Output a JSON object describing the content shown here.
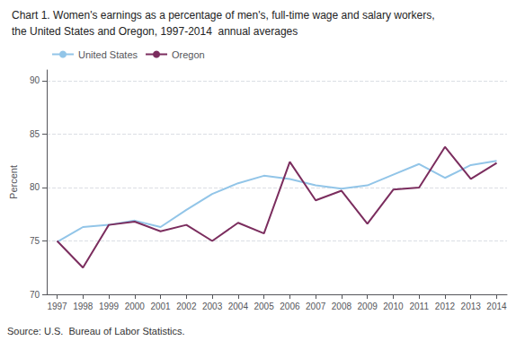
{
  "chart_data": {
    "type": "line",
    "title": "Chart 1. Women's earnings as a percentage of men's, full-time wage and salary workers,",
    "subtitle": "the United States and Oregon, 1997-2014  annual averages",
    "y_label": "Percent",
    "annotations": [
      "Source: U.S.  Bureau of Labor Statistics."
    ],
    "x": [
      1997,
      1998,
      1999,
      2000,
      2001,
      2002,
      2003,
      2004,
      2005,
      2006,
      2007,
      2008,
      2009,
      2010,
      2011,
      2012,
      2013,
      2014
    ],
    "series": [
      {
        "name": "United States",
        "color": "#92C5E8",
        "values": [
          74.9,
          76.3,
          76.5,
          76.9,
          76.3,
          77.9,
          79.4,
          80.4,
          81.1,
          80.8,
          80.2,
          79.9,
          80.2,
          81.2,
          82.2,
          80.9,
          82.1,
          82.5
        ]
      },
      {
        "name": "Oregon",
        "color": "#7B2D5E",
        "values": [
          75.0,
          72.5,
          76.5,
          76.8,
          75.9,
          76.5,
          75.0,
          76.7,
          75.7,
          82.4,
          78.8,
          79.7,
          76.6,
          79.8,
          80.0,
          83.8,
          80.8,
          82.3
        ]
      }
    ],
    "xlim": [
      1996.6,
      2014.4
    ],
    "xticks": [
      1997,
      1998,
      1999,
      2000,
      2001,
      2002,
      2003,
      2004,
      2005,
      2006,
      2007,
      2008,
      2009,
      2010,
      2011,
      2012,
      2013,
      2014
    ],
    "ylim": [
      70,
      91
    ],
    "yticks": [
      70,
      75,
      80,
      85,
      90
    ],
    "grid": true,
    "legend": "upper left"
  }
}
